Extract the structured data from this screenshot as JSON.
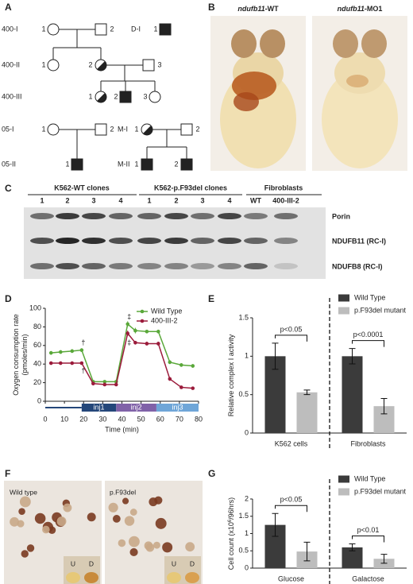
{
  "panels": [
    "A",
    "B",
    "C",
    "D",
    "E",
    "F",
    "G"
  ],
  "pedigree": {
    "generations": [
      "400-I",
      "400-II",
      "400-III",
      "05-I",
      "05-II"
    ],
    "family_labels": [
      "D-I",
      "M-I",
      "M-II"
    ],
    "individuals": [
      "1",
      "2",
      "1",
      "1",
      "2",
      "3",
      "1",
      "2",
      "3",
      "1",
      "2",
      "1",
      "2",
      "1",
      "1",
      "2"
    ]
  },
  "images_b": [
    {
      "gene": "ndufb11",
      "suffix": "-WT"
    },
    {
      "gene": "ndufb11",
      "suffix": "-MO1"
    }
  ],
  "blot": {
    "groups": [
      "K562-WT clones",
      "K562-p.F93del clones",
      "Fibroblasts"
    ],
    "lanes": [
      "1",
      "2",
      "3",
      "4",
      "1",
      "2",
      "3",
      "4",
      "WT",
      "400-III-2"
    ],
    "bands": [
      "Porin",
      "NDUFB11 (RC-I)",
      "NDUFB8 (RC-I)"
    ]
  },
  "images_f": {
    "titles": [
      "Wild type",
      "p.F93del"
    ],
    "insets": [
      "U",
      "D",
      "U",
      "D"
    ]
  },
  "chart_data": [
    {
      "type": "line",
      "y_label": [
        "Oxygen consumption rate",
        "(pmoles/min)"
      ],
      "x_label": "Time (min)",
      "x": [
        3,
        8,
        14,
        19,
        25,
        31,
        37,
        43,
        47,
        53,
        59,
        65,
        71,
        77
      ],
      "xlim": [
        0,
        80
      ],
      "xticks": [
        0,
        10,
        20,
        30,
        40,
        50,
        60,
        70,
        80
      ],
      "ylim": [
        0,
        100
      ],
      "yticks": [
        0,
        20,
        40,
        60,
        80,
        100
      ],
      "legend": "upper right",
      "series": [
        {
          "name": "Wild Type",
          "color": "#5aa83a",
          "values": [
            52,
            53,
            54,
            55,
            21,
            21,
            21,
            83,
            76,
            75,
            75,
            42,
            39,
            38
          ],
          "errors": [
            2,
            2,
            2,
            2,
            1,
            1,
            1,
            3,
            3,
            2,
            2,
            2,
            2,
            2
          ]
        },
        {
          "name": "400-III-2",
          "color": "#9b1b3b",
          "values": [
            41,
            41,
            41,
            41,
            19,
            18,
            18,
            73,
            63,
            62,
            62,
            24,
            15,
            14
          ],
          "errors": [
            1,
            1,
            1,
            1,
            1,
            1,
            1,
            3,
            2,
            2,
            2,
            2,
            1,
            1
          ]
        }
      ],
      "injections": [
        "inj1",
        "inj2",
        "inj3"
      ],
      "annotations": [
        "†",
        "†",
        "‡",
        "‡"
      ]
    },
    {
      "type": "bar",
      "y_label": [
        "Relative complex I activity"
      ],
      "categories": [
        "K562 cells",
        "Fibroblasts"
      ],
      "ylim": [
        0,
        1.5
      ],
      "yticks": [
        0,
        0.5,
        1,
        1.5
      ],
      "legend": "upper right",
      "series": [
        {
          "name": "Wild Type",
          "color": "#3b3b3b",
          "values": [
            1,
            1
          ],
          "errors": [
            0.17,
            0.1
          ]
        },
        {
          "name": "p.F93del mutant",
          "color": "#bdbdbd",
          "values": [
            0.53,
            0.35
          ],
          "errors": [
            0.03,
            0.1
          ]
        }
      ],
      "annotations": [
        "p<0.05",
        "p<0.0001"
      ]
    },
    {
      "type": "bar",
      "y_label": [
        "Cell count (x10",
        "6",
        "/96hrs)"
      ],
      "categories": [
        "Glucose",
        "Galactose"
      ],
      "ylim": [
        0,
        2
      ],
      "yticks": [
        0,
        0.5,
        1,
        1.5,
        2
      ],
      "legend": "upper right",
      "series": [
        {
          "name": "Wild Type",
          "color": "#3b3b3b",
          "values": [
            1.25,
            0.6
          ],
          "errors": [
            0.33,
            0.1
          ]
        },
        {
          "name": "p.F93del mutant",
          "color": "#bdbdbd",
          "values": [
            0.48,
            0.27
          ],
          "errors": [
            0.27,
            0.13
          ]
        }
      ],
      "annotations": [
        "p<0.05",
        "p<0.01"
      ]
    }
  ]
}
